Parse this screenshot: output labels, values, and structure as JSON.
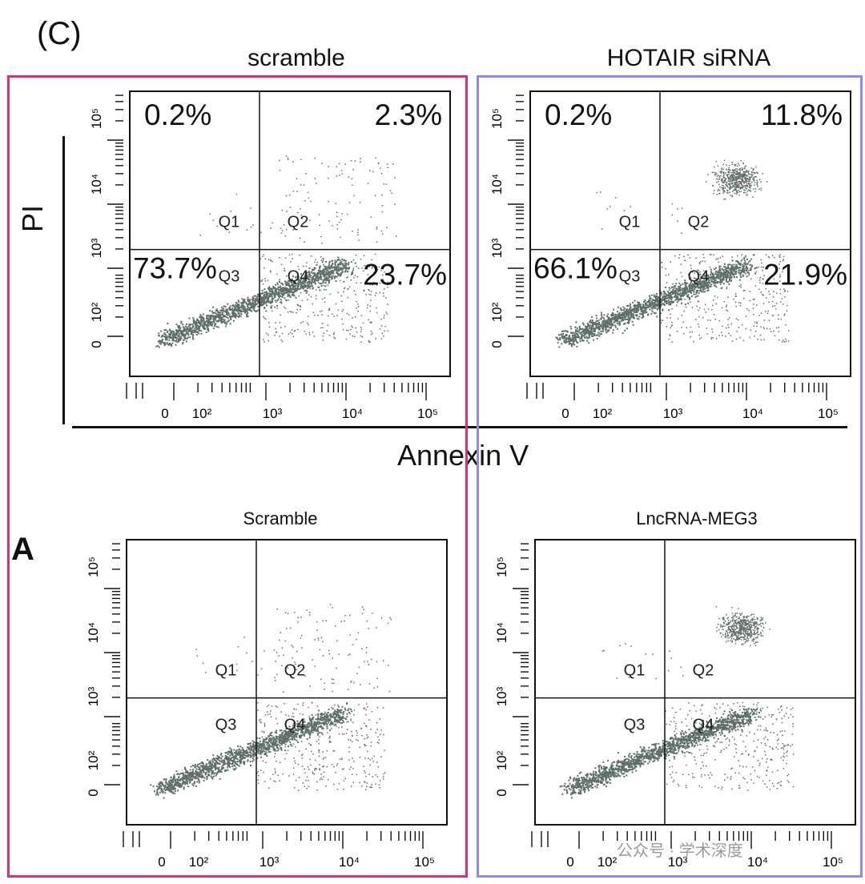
{
  "figure": {
    "panel_c_label": "(C)",
    "panel_a_label": "A",
    "y_axis_label": "PI",
    "x_axis_label": "Annexin V",
    "highlight_colors": {
      "left": "#e0306a",
      "right": "#8a8af0"
    },
    "dot_color": "#5e6e6a",
    "watermark": "公众号 · 学术深度"
  },
  "plots": [
    {
      "id": "c-scramble",
      "title": "scramble",
      "quadrant_labels": [
        "Q1",
        "Q2",
        "Q3",
        "Q4"
      ],
      "percents": {
        "q1": "0.2%",
        "q2": "2.3%",
        "q3": "73.7%",
        "q4": "23.7%"
      },
      "x_ticks": [
        "0",
        "10²",
        "10³",
        "10⁴",
        "10⁵"
      ],
      "y_ticks": [
        "0",
        "10²",
        "10³",
        "10⁴",
        "10⁵"
      ]
    },
    {
      "id": "c-hotair",
      "title": "HOTAIR siRNA",
      "quadrant_labels": [
        "Q1",
        "Q2",
        "Q3",
        "Q4"
      ],
      "percents": {
        "q1": "0.2%",
        "q2": "11.8%",
        "q3": "66.1%",
        "q4": "21.9%"
      },
      "x_ticks": [
        "0",
        "10²",
        "10³",
        "10⁴",
        "10⁵"
      ],
      "y_ticks": [
        "0",
        "10²",
        "10³",
        "10⁴",
        "10⁵"
      ]
    },
    {
      "id": "a-scramble",
      "title": "Scramble",
      "quadrant_labels": [
        "Q1",
        "Q2",
        "Q3",
        "Q4"
      ],
      "x_ticks": [
        "0",
        "10²",
        "10³",
        "10⁴",
        "10⁵"
      ],
      "y_ticks": [
        "0",
        "10²",
        "10³",
        "10⁴",
        "10⁵"
      ]
    },
    {
      "id": "a-meg3",
      "title": "LncRNA-MEG3",
      "quadrant_labels": [
        "Q1",
        "Q2",
        "Q3",
        "Q4"
      ],
      "x_ticks": [
        "0",
        "10²",
        "10³",
        "10⁴",
        "10⁵"
      ],
      "y_ticks": [
        "0",
        "10²",
        "10³",
        "10⁴",
        "10⁵"
      ]
    }
  ]
}
